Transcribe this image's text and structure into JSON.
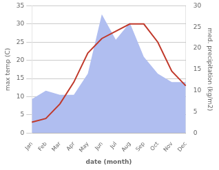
{
  "chart_data": {
    "type": "line",
    "categories": [
      "Jan",
      "Feb",
      "Mar",
      "Apr",
      "May",
      "Jun",
      "Jul",
      "Aug",
      "Sep",
      "Oct",
      "Nov",
      "Dec"
    ],
    "series": [
      {
        "type": "area",
        "color": "#b0bef0",
        "axis": "y2",
        "values": [
          8,
          10,
          9,
          9,
          14,
          28,
          22,
          26,
          18,
          14,
          12,
          12
        ]
      },
      {
        "type": "line",
        "color": "#c0392b",
        "values": [
          3,
          4,
          8,
          14,
          22,
          26,
          28,
          30,
          30,
          25,
          17,
          13
        ]
      }
    ],
    "xlabel": "date (month)",
    "ylabel": "max temp (C)",
    "y2label": "med. precipitation (kg/m2)",
    "ylim": [
      0,
      35
    ],
    "yticks": [
      0,
      5,
      10,
      15,
      20,
      25,
      30,
      35
    ],
    "y2lim": [
      0,
      30
    ],
    "y2ticks": [
      0,
      5,
      10,
      15,
      20,
      25,
      30
    ],
    "grid": true
  }
}
